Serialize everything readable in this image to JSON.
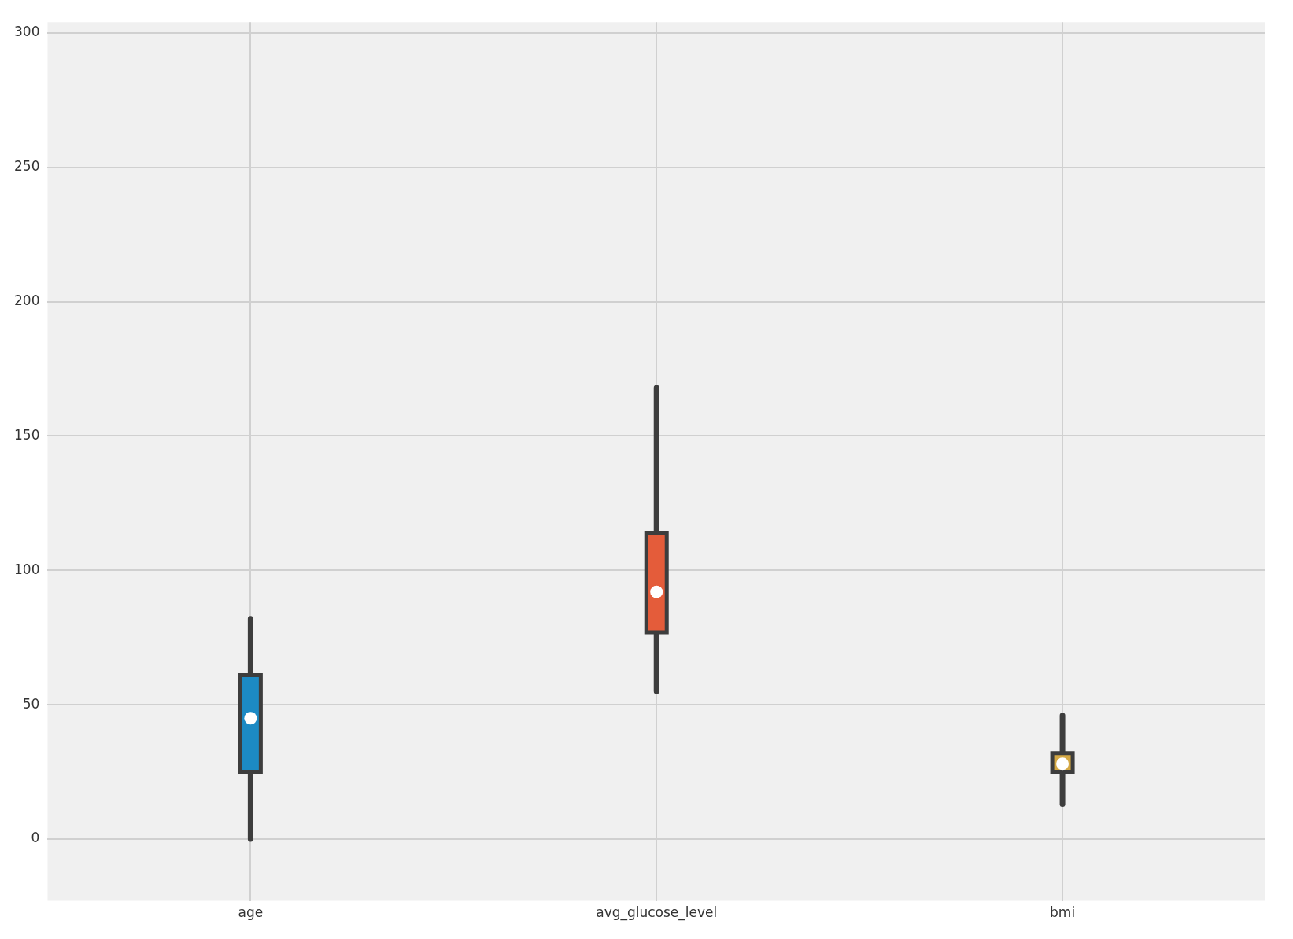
{
  "chart_data": {
    "type": "box",
    "categories": [
      "age",
      "avg_glucose_level",
      "bmi"
    ],
    "boxes": [
      {
        "low": 0,
        "q1": 25,
        "median": 45,
        "q3": 61,
        "high": 82
      },
      {
        "low": 55,
        "q1": 77,
        "median": 92,
        "q3": 114,
        "high": 168
      },
      {
        "low": 13,
        "q1": 25,
        "median": 28,
        "q3": 32,
        "high": 46
      }
    ],
    "colors": [
      "#1c8ac4",
      "#e45c3a",
      "#d4a844"
    ],
    "ylim": [
      -23,
      304
    ],
    "yticks": [
      0,
      50,
      100,
      150,
      200,
      250,
      300
    ],
    "grid": true
  }
}
